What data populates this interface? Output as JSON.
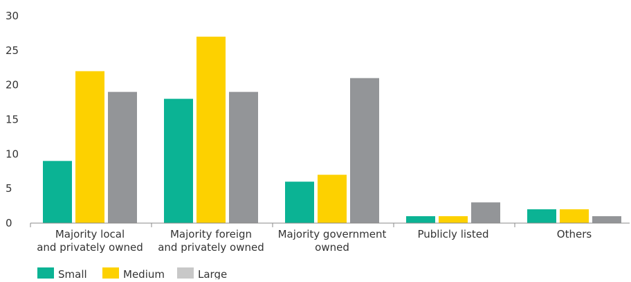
{
  "chart_data": {
    "type": "bar",
    "categories": [
      [
        "Majority local",
        "and privately owned"
      ],
      [
        "Majority foreign",
        "and privately owned"
      ],
      [
        "Majority government",
        "owned"
      ],
      [
        "Publicly listed"
      ],
      [
        "Others"
      ]
    ],
    "series": [
      {
        "name": "Small",
        "color": "#0bb394",
        "values": [
          9,
          18,
          6,
          1,
          2
        ]
      },
      {
        "name": "Medium",
        "color": "#fdd100",
        "values": [
          22,
          27,
          7,
          1,
          2
        ]
      },
      {
        "name": "Large",
        "color": "#939598",
        "values": [
          19,
          19,
          21,
          3,
          1
        ]
      }
    ],
    "legend_colors": [
      "#0bb394",
      "#fdd100",
      "#c8c8c8"
    ],
    "y_ticks": [
      "0",
      "5",
      "10",
      "15",
      "20",
      "25",
      "30"
    ],
    "ylim": [
      0,
      30
    ],
    "grid": false,
    "legend_position": "bottom-left",
    "axis_color": "#888888"
  }
}
